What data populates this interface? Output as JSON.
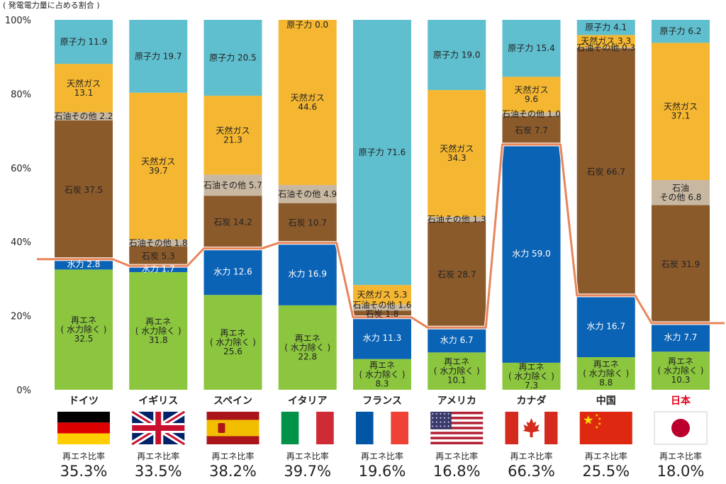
{
  "chart_data": {
    "type": "bar",
    "stacked": true,
    "title": "( 発電電力量に占める割合 )",
    "y_ticks": [
      "0%",
      "20%",
      "40%",
      "60%",
      "80%",
      "100%"
    ],
    "ylim": [
      0,
      100
    ],
    "grid": false,
    "series_colors": {
      "renewable": "#8cc63f",
      "hydro": "#0b63b6",
      "coal": "#8b5a2b",
      "oil": "#c8b8a2",
      "gas": "#f5b731",
      "nuclear": "#5fbfcf",
      "ratio_line": "#e8855a",
      "highlight": "#e8001c"
    },
    "ratio_caption": "再エネ比率",
    "countries": [
      {
        "name": "ドイツ",
        "flag": "de",
        "ratio": 35.3,
        "ratio_label": "35.3%",
        "segments": [
          {
            "type": "renewable",
            "value": 32.5,
            "label": [
              "再エネ",
              "( 水力除く )",
              "32.5"
            ]
          },
          {
            "type": "hydro",
            "value": 2.8,
            "label": [
              "水力 2.8"
            ]
          },
          {
            "type": "coal",
            "value": 37.5,
            "label": [
              "石炭 37.5"
            ]
          },
          {
            "type": "oil",
            "value": 2.2,
            "label": [
              "石油その他 2.2"
            ]
          },
          {
            "type": "gas",
            "value": 13.1,
            "label": [
              "天然ガス",
              "13.1"
            ]
          },
          {
            "type": "nuclear",
            "value": 11.9,
            "label": [
              "原子力 11.9"
            ]
          }
        ]
      },
      {
        "name": "イギリス",
        "flag": "gb",
        "ratio": 33.5,
        "ratio_label": "33.5%",
        "segments": [
          {
            "type": "renewable",
            "value": 31.8,
            "label": [
              "再エネ",
              "( 水力除く )",
              "31.8"
            ]
          },
          {
            "type": "hydro",
            "value": 1.7,
            "label": [
              "水力 1.7"
            ]
          },
          {
            "type": "coal",
            "value": 5.3,
            "label": [
              "石炭 5.3"
            ]
          },
          {
            "type": "oil",
            "value": 1.8,
            "label": [
              "石油その他 1.8"
            ]
          },
          {
            "type": "gas",
            "value": 39.7,
            "label": [
              "天然ガス",
              "39.7"
            ]
          },
          {
            "type": "nuclear",
            "value": 19.7,
            "label": [
              "原子力 19.7"
            ]
          }
        ]
      },
      {
        "name": "スペイン",
        "flag": "es",
        "ratio": 38.2,
        "ratio_label": "38.2%",
        "segments": [
          {
            "type": "renewable",
            "value": 25.6,
            "label": [
              "再エネ",
              "( 水力除く )",
              "25.6"
            ]
          },
          {
            "type": "hydro",
            "value": 12.6,
            "label": [
              "水力 12.6"
            ]
          },
          {
            "type": "coal",
            "value": 14.2,
            "label": [
              "石炭 14.2"
            ]
          },
          {
            "type": "oil",
            "value": 5.7,
            "label": [
              "石油その他 5.7"
            ]
          },
          {
            "type": "gas",
            "value": 21.3,
            "label": [
              "天然ガス",
              "21.3"
            ]
          },
          {
            "type": "nuclear",
            "value": 20.5,
            "label": [
              "原子力 20.5"
            ]
          }
        ]
      },
      {
        "name": "イタリア",
        "flag": "it",
        "ratio": 39.7,
        "ratio_label": "39.7%",
        "segments": [
          {
            "type": "renewable",
            "value": 22.8,
            "label": [
              "再エネ",
              "( 水力除く )",
              "22.8"
            ]
          },
          {
            "type": "hydro",
            "value": 16.9,
            "label": [
              "水力 16.9"
            ]
          },
          {
            "type": "coal",
            "value": 10.7,
            "label": [
              "石炭 10.7"
            ]
          },
          {
            "type": "oil",
            "value": 4.9,
            "label": [
              "石油その他 4.9"
            ]
          },
          {
            "type": "gas",
            "value": 44.6,
            "label": [
              "天然ガス",
              "44.6"
            ]
          },
          {
            "type": "nuclear",
            "value": 0.0,
            "label": [
              "原子力 0.0"
            ]
          }
        ]
      },
      {
        "name": "フランス",
        "flag": "fr",
        "ratio": 19.6,
        "ratio_label": "19.6%",
        "segments": [
          {
            "type": "renewable",
            "value": 8.3,
            "label": [
              "再エネ",
              "( 水力除く )",
              "8.3"
            ]
          },
          {
            "type": "hydro",
            "value": 11.3,
            "label": [
              "水力 11.3"
            ]
          },
          {
            "type": "coal",
            "value": 1.8,
            "label": [
              "石炭 1.8"
            ]
          },
          {
            "type": "oil",
            "value": 1.6,
            "label": [
              "石油その他 1.6"
            ]
          },
          {
            "type": "gas",
            "value": 5.3,
            "label": [
              "天然ガス 5.3"
            ]
          },
          {
            "type": "nuclear",
            "value": 71.6,
            "label": [
              "原子力 71.6"
            ]
          }
        ]
      },
      {
        "name": "アメリカ",
        "flag": "us",
        "ratio": 16.8,
        "ratio_label": "16.8%",
        "segments": [
          {
            "type": "renewable",
            "value": 10.1,
            "label": [
              "再エネ",
              "( 水力除く )",
              "10.1"
            ]
          },
          {
            "type": "hydro",
            "value": 6.7,
            "label": [
              "水力 6.7"
            ]
          },
          {
            "type": "coal",
            "value": 28.7,
            "label": [
              "石炭 28.7"
            ]
          },
          {
            "type": "oil",
            "value": 1.3,
            "label": [
              "石油その他 1.3"
            ]
          },
          {
            "type": "gas",
            "value": 34.3,
            "label": [
              "天然ガス",
              "34.3"
            ]
          },
          {
            "type": "nuclear",
            "value": 19.0,
            "label": [
              "原子力 19.0"
            ]
          }
        ]
      },
      {
        "name": "カナダ",
        "flag": "ca",
        "ratio": 66.3,
        "ratio_label": "66.3%",
        "segments": [
          {
            "type": "renewable",
            "value": 7.3,
            "label": [
              "再エネ",
              "( 水力除く )",
              "7.3"
            ]
          },
          {
            "type": "hydro",
            "value": 59.0,
            "label": [
              "水力 59.0"
            ]
          },
          {
            "type": "coal",
            "value": 7.7,
            "label": [
              "石炭 7.7"
            ]
          },
          {
            "type": "oil",
            "value": 1.0,
            "label": [
              "石油その他 1.0"
            ]
          },
          {
            "type": "gas",
            "value": 9.6,
            "label": [
              "天然ガス",
              "9.6"
            ]
          },
          {
            "type": "nuclear",
            "value": 15.4,
            "label": [
              "原子力 15.4"
            ]
          }
        ]
      },
      {
        "name": "中国",
        "flag": "cn",
        "ratio": 25.5,
        "ratio_label": "25.5%",
        "segments": [
          {
            "type": "renewable",
            "value": 8.8,
            "label": [
              "再エネ",
              "( 水力除く )",
              "8.8"
            ]
          },
          {
            "type": "hydro",
            "value": 16.7,
            "label": [
              "水力 16.7"
            ]
          },
          {
            "type": "coal",
            "value": 66.7,
            "label": [
              "石炭 66.7"
            ]
          },
          {
            "type": "oil",
            "value": 0.3,
            "label": [
              "石油その他 0.3"
            ]
          },
          {
            "type": "gas",
            "value": 3.3,
            "label": [
              "天然ガス 3.3"
            ]
          },
          {
            "type": "nuclear",
            "value": 4.1,
            "label": [
              "原子力 4.1"
            ]
          }
        ]
      },
      {
        "name": "日本",
        "flag": "jp",
        "ratio": 18.0,
        "ratio_label": "18.0%",
        "highlight": true,
        "segments": [
          {
            "type": "renewable",
            "value": 10.3,
            "label": [
              "再エネ",
              "( 水力除く )",
              "10.3"
            ]
          },
          {
            "type": "hydro",
            "value": 7.7,
            "label": [
              "水力 7.7"
            ]
          },
          {
            "type": "coal",
            "value": 31.9,
            "label": [
              "石炭 31.9"
            ]
          },
          {
            "type": "oil",
            "value": 6.8,
            "label": [
              "石油",
              "その他 6.8"
            ]
          },
          {
            "type": "gas",
            "value": 37.1,
            "label": [
              "天然ガス",
              "37.1"
            ]
          },
          {
            "type": "nuclear",
            "value": 6.2,
            "label": [
              "原子力 6.2"
            ]
          }
        ]
      }
    ]
  }
}
